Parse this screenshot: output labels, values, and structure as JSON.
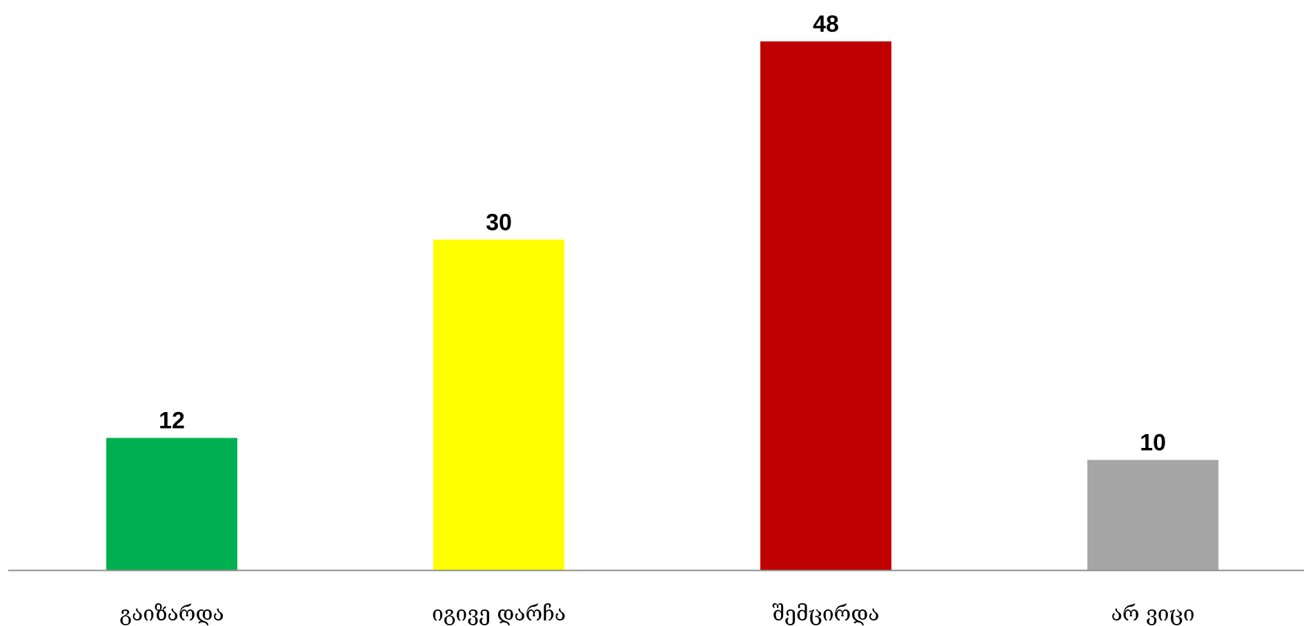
{
  "chart_data": {
    "type": "bar",
    "categories": [
      "გაიზარდა",
      "იგივე დარჩა",
      "შემცირდა",
      "არ ვიცი"
    ],
    "values": [
      12,
      30,
      48,
      10
    ],
    "colors": [
      "#00B050",
      "#FFFF00",
      "#C00000",
      "#A6A6A6"
    ],
    "ylim": [
      0,
      48
    ],
    "grid": false,
    "legend": "none"
  }
}
